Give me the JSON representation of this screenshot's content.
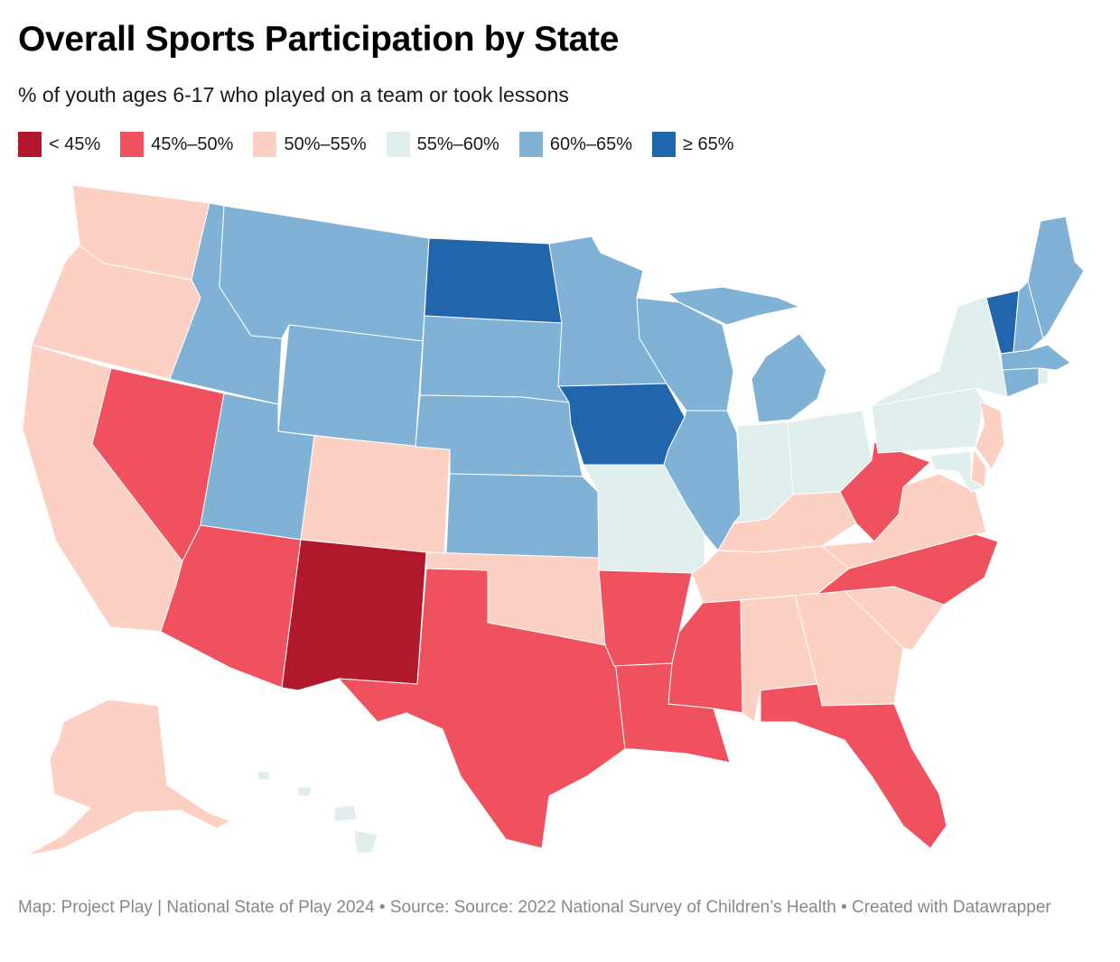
{
  "header": {
    "title": "Overall Sports Participation by State",
    "subtitle": "% of youth ages 6-17 who played on a team or took lessons"
  },
  "legend": [
    {
      "label": "< 45%",
      "color": "#b2182b"
    },
    {
      "label": "45%–50%",
      "color": "#ef525e"
    },
    {
      "label": "50%–55%",
      "color": "#fdd0c4"
    },
    {
      "label": "55%–60%",
      "color": "#e1eeee"
    },
    {
      "label": "60%–65%",
      "color": "#7fb2d5"
    },
    {
      "label": "≥ 65%",
      "color": "#2166ac"
    }
  ],
  "map_data": {
    "type": "choropleth",
    "region": "United States",
    "states": [
      {
        "state": "Washington",
        "bin": "50%–55%"
      },
      {
        "state": "Oregon",
        "bin": "50%–55%"
      },
      {
        "state": "California",
        "bin": "50%–55%"
      },
      {
        "state": "Nevada",
        "bin": "45%–50%"
      },
      {
        "state": "Idaho",
        "bin": "60%–65%"
      },
      {
        "state": "Montana",
        "bin": "60%–65%"
      },
      {
        "state": "Wyoming",
        "bin": "60%–65%"
      },
      {
        "state": "Utah",
        "bin": "60%–65%"
      },
      {
        "state": "Arizona",
        "bin": "45%–50%"
      },
      {
        "state": "Colorado",
        "bin": "50%–55%"
      },
      {
        "state": "New Mexico",
        "bin": "< 45%"
      },
      {
        "state": "North Dakota",
        "bin": "≥ 65%"
      },
      {
        "state": "South Dakota",
        "bin": "60%–65%"
      },
      {
        "state": "Nebraska",
        "bin": "60%–65%"
      },
      {
        "state": "Kansas",
        "bin": "60%–65%"
      },
      {
        "state": "Oklahoma",
        "bin": "50%–55%"
      },
      {
        "state": "Texas",
        "bin": "45%–50%"
      },
      {
        "state": "Minnesota",
        "bin": "60%–65%"
      },
      {
        "state": "Iowa",
        "bin": "≥ 65%"
      },
      {
        "state": "Missouri",
        "bin": "55%–60%"
      },
      {
        "state": "Arkansas",
        "bin": "45%–50%"
      },
      {
        "state": "Louisiana",
        "bin": "45%–50%"
      },
      {
        "state": "Wisconsin",
        "bin": "60%–65%"
      },
      {
        "state": "Illinois",
        "bin": "60%–65%"
      },
      {
        "state": "Michigan",
        "bin": "60%–65%"
      },
      {
        "state": "Indiana",
        "bin": "55%–60%"
      },
      {
        "state": "Ohio",
        "bin": "55%–60%"
      },
      {
        "state": "Kentucky",
        "bin": "50%–55%"
      },
      {
        "state": "Tennessee",
        "bin": "50%–55%"
      },
      {
        "state": "Mississippi",
        "bin": "45%–50%"
      },
      {
        "state": "Alabama",
        "bin": "50%–55%"
      },
      {
        "state": "Georgia",
        "bin": "50%–55%"
      },
      {
        "state": "Florida",
        "bin": "45%–50%"
      },
      {
        "state": "South Carolina",
        "bin": "50%–55%"
      },
      {
        "state": "North Carolina",
        "bin": "45%–50%"
      },
      {
        "state": "Virginia",
        "bin": "50%–55%"
      },
      {
        "state": "West Virginia",
        "bin": "45%–50%"
      },
      {
        "state": "Pennsylvania",
        "bin": "55%–60%"
      },
      {
        "state": "New York",
        "bin": "55%–60%"
      },
      {
        "state": "Vermont",
        "bin": "≥ 65%"
      },
      {
        "state": "New Hampshire",
        "bin": "60%–65%"
      },
      {
        "state": "Maine",
        "bin": "60%–65%"
      },
      {
        "state": "Massachusetts",
        "bin": "60%–65%"
      },
      {
        "state": "Rhode Island",
        "bin": "55%–60%"
      },
      {
        "state": "Connecticut",
        "bin": "60%–65%"
      },
      {
        "state": "New Jersey",
        "bin": "50%–55%"
      },
      {
        "state": "Delaware",
        "bin": "50%–55%"
      },
      {
        "state": "Maryland",
        "bin": "55%–60%"
      },
      {
        "state": "Alaska",
        "bin": "50%–55%"
      },
      {
        "state": "Hawaii",
        "bin": "55%–60%"
      }
    ]
  },
  "footer": {
    "text": "Map: Project Play | National State of Play 2024 • Source: Source: 2022 National Survey of Children’s Health • Created with Datawrapper"
  }
}
